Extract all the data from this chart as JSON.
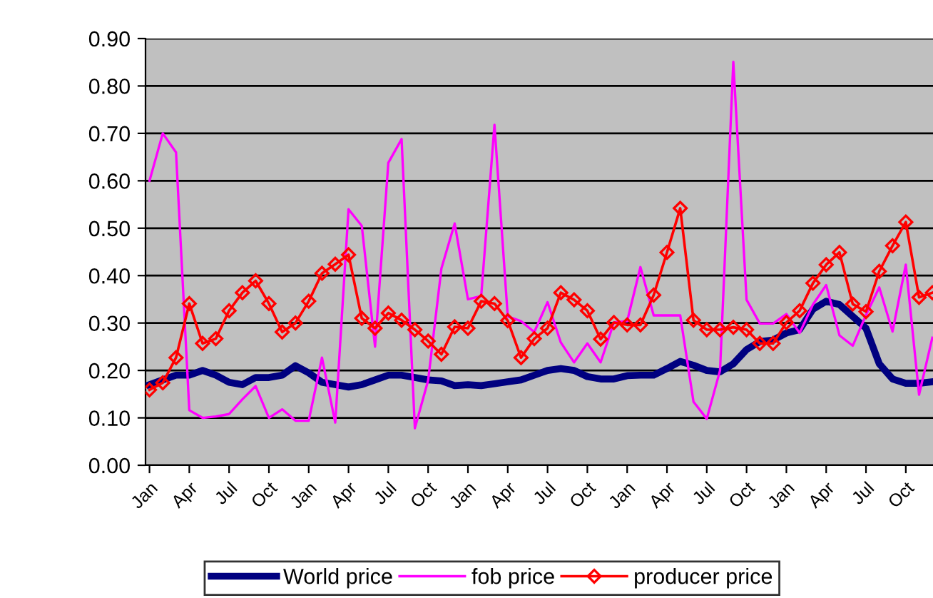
{
  "chart_data": {
    "type": "line",
    "categories": [
      "Jan",
      null,
      null,
      "Apr",
      null,
      null,
      "Jul",
      null,
      null,
      "Oct",
      null,
      null,
      "Jan",
      null,
      null,
      "Apr",
      null,
      null,
      "Jul",
      null,
      null,
      "Oct",
      null,
      null,
      "Jan",
      null,
      null,
      "Apr",
      null,
      null,
      "Jul",
      null,
      null,
      "Oct",
      null,
      null,
      "Jan",
      null,
      null,
      "Apr",
      null,
      null,
      "Jul",
      null,
      null,
      "Oct",
      null,
      null,
      "Jan",
      null,
      null,
      "Apr",
      null,
      null,
      "Jul",
      null,
      null,
      "Oct",
      null,
      null
    ],
    "series": [
      {
        "name": "World price",
        "color": "#000080",
        "marker": "none",
        "values": [
          0.17,
          0.18,
          0.19,
          0.19,
          0.2,
          0.19,
          0.175,
          0.17,
          0.185,
          0.185,
          0.19,
          0.21,
          0.195,
          0.175,
          0.17,
          0.165,
          0.17,
          0.18,
          0.19,
          0.19,
          0.185,
          0.18,
          0.178,
          0.168,
          0.17,
          0.168,
          0.172,
          0.176,
          0.18,
          0.19,
          0.2,
          0.204,
          0.2,
          0.187,
          0.182,
          0.182,
          0.189,
          0.19,
          0.19,
          0.204,
          0.219,
          0.211,
          0.2,
          0.197,
          0.214,
          0.244,
          0.261,
          0.264,
          0.279,
          0.286,
          0.329,
          0.346,
          0.339,
          0.314,
          0.289,
          0.214,
          0.182,
          0.173,
          0.173,
          0.176
        ]
      },
      {
        "name": "fob price",
        "color": "#ff00ff",
        "marker": "none",
        "values": [
          0.6,
          0.7,
          0.66,
          0.116,
          0.1,
          0.103,
          0.108,
          0.139,
          0.167,
          0.1,
          0.118,
          0.094,
          0.094,
          0.227,
          0.09,
          0.54,
          0.505,
          0.25,
          0.638,
          0.688,
          0.078,
          0.179,
          0.415,
          0.51,
          0.35,
          0.357,
          0.718,
          0.314,
          0.304,
          0.281,
          0.344,
          0.259,
          0.217,
          0.257,
          0.217,
          0.301,
          0.304,
          0.418,
          0.316,
          0.316,
          0.316,
          0.134,
          0.098,
          0.2,
          0.851,
          0.349,
          0.299,
          0.299,
          0.319,
          0.279,
          0.339,
          0.38,
          0.274,
          0.252,
          0.317,
          0.375,
          0.282,
          0.423,
          0.149,
          0.269
        ]
      },
      {
        "name": "producer price",
        "color": "#ff0000",
        "marker": "diamond",
        "values": [
          0.159,
          0.174,
          0.227,
          0.341,
          0.257,
          0.267,
          0.326,
          0.364,
          0.389,
          0.341,
          0.281,
          0.3,
          0.346,
          0.405,
          0.424,
          0.444,
          0.31,
          0.289,
          0.321,
          0.306,
          0.286,
          0.262,
          0.234,
          0.292,
          0.289,
          0.346,
          0.341,
          0.305,
          0.227,
          0.267,
          0.289,
          0.364,
          0.349,
          0.326,
          0.266,
          0.301,
          0.296,
          0.296,
          0.359,
          0.449,
          0.542,
          0.306,
          0.286,
          0.286,
          0.291,
          0.286,
          0.257,
          0.257,
          0.301,
          0.326,
          0.384,
          0.423,
          0.449,
          0.34,
          0.324,
          0.409,
          0.463,
          0.513,
          0.354,
          0.364
        ]
      }
    ],
    "ylim": [
      0,
      0.9
    ],
    "yticks": [
      {
        "value": 0,
        "label": "0.00"
      },
      {
        "value": 0.1,
        "label": "0.10"
      },
      {
        "value": 0.2,
        "label": "0.20"
      },
      {
        "value": 0.3,
        "label": "0.30"
      },
      {
        "value": 0.4,
        "label": "0.40"
      },
      {
        "value": 0.5,
        "label": "0.50"
      },
      {
        "value": 0.6,
        "label": "0.60"
      },
      {
        "value": 0.7,
        "label": "0.70"
      },
      {
        "value": 0.8,
        "label": "0.80"
      },
      {
        "value": 0.9,
        "label": "0.90"
      }
    ],
    "grid": "y",
    "legend": "bottom"
  }
}
